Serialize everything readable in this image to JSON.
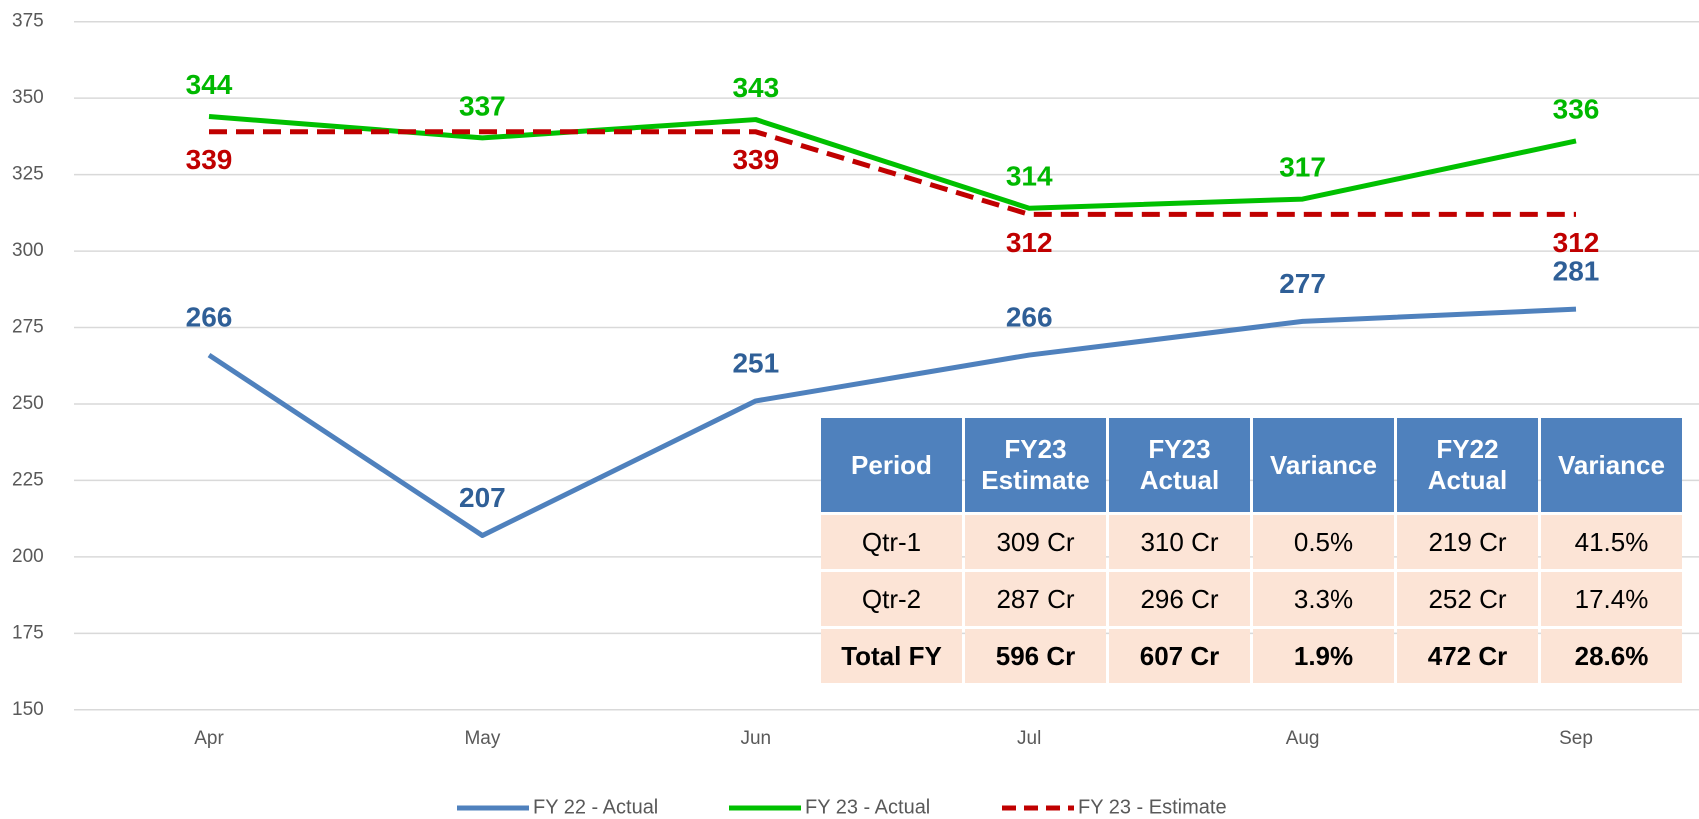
{
  "chart_data": {
    "type": "line",
    "categories": [
      "Apr",
      "May",
      "Jun",
      "Jul",
      "Aug",
      "Sep"
    ],
    "ylim": [
      150,
      375
    ],
    "yticks": [
      150,
      175,
      200,
      225,
      250,
      275,
      300,
      325,
      350,
      375
    ],
    "grid": true,
    "legend": "bottom",
    "series": [
      {
        "name": "FY 22 - Actual",
        "color": "#4f81bd",
        "label_color": "#2f5f97",
        "dashed": false,
        "values": [
          266,
          207,
          251,
          266,
          277,
          281
        ],
        "value_labels": [
          "266",
          "207",
          "251",
          "266",
          "277",
          "281"
        ]
      },
      {
        "name": "FY 23 - Actual",
        "color": "#00c000",
        "label_color": "#00b800",
        "dashed": false,
        "values": [
          344,
          337,
          343,
          314,
          317,
          336
        ],
        "value_labels": [
          "344",
          "337",
          "343",
          "314",
          "317",
          "336"
        ]
      },
      {
        "name": "FY 23 - Estimate",
        "color": "#c00000",
        "label_color": "#c00000",
        "dashed": true,
        "values": [
          339,
          339,
          339,
          312,
          312,
          312
        ],
        "value_labels": [
          "339",
          null,
          "339",
          "312",
          null,
          "312"
        ]
      }
    ]
  },
  "table": {
    "header": [
      "Period",
      "FY23 Estimate",
      "FY23 Actual",
      "Variance",
      "FY22 Actual",
      "Variance"
    ],
    "rows": [
      [
        "Qtr-1",
        "309 Cr",
        "310 Cr",
        "0.5%",
        "219 Cr",
        "41.5%"
      ],
      [
        "Qtr-2",
        "287 Cr",
        "296 Cr",
        "3.3%",
        "252 Cr",
        "17.4%"
      ],
      [
        "Total FY",
        "596 Cr",
        "607 Cr",
        "1.9%",
        "472 Cr",
        "28.6%"
      ]
    ],
    "bold_last_row": true
  }
}
